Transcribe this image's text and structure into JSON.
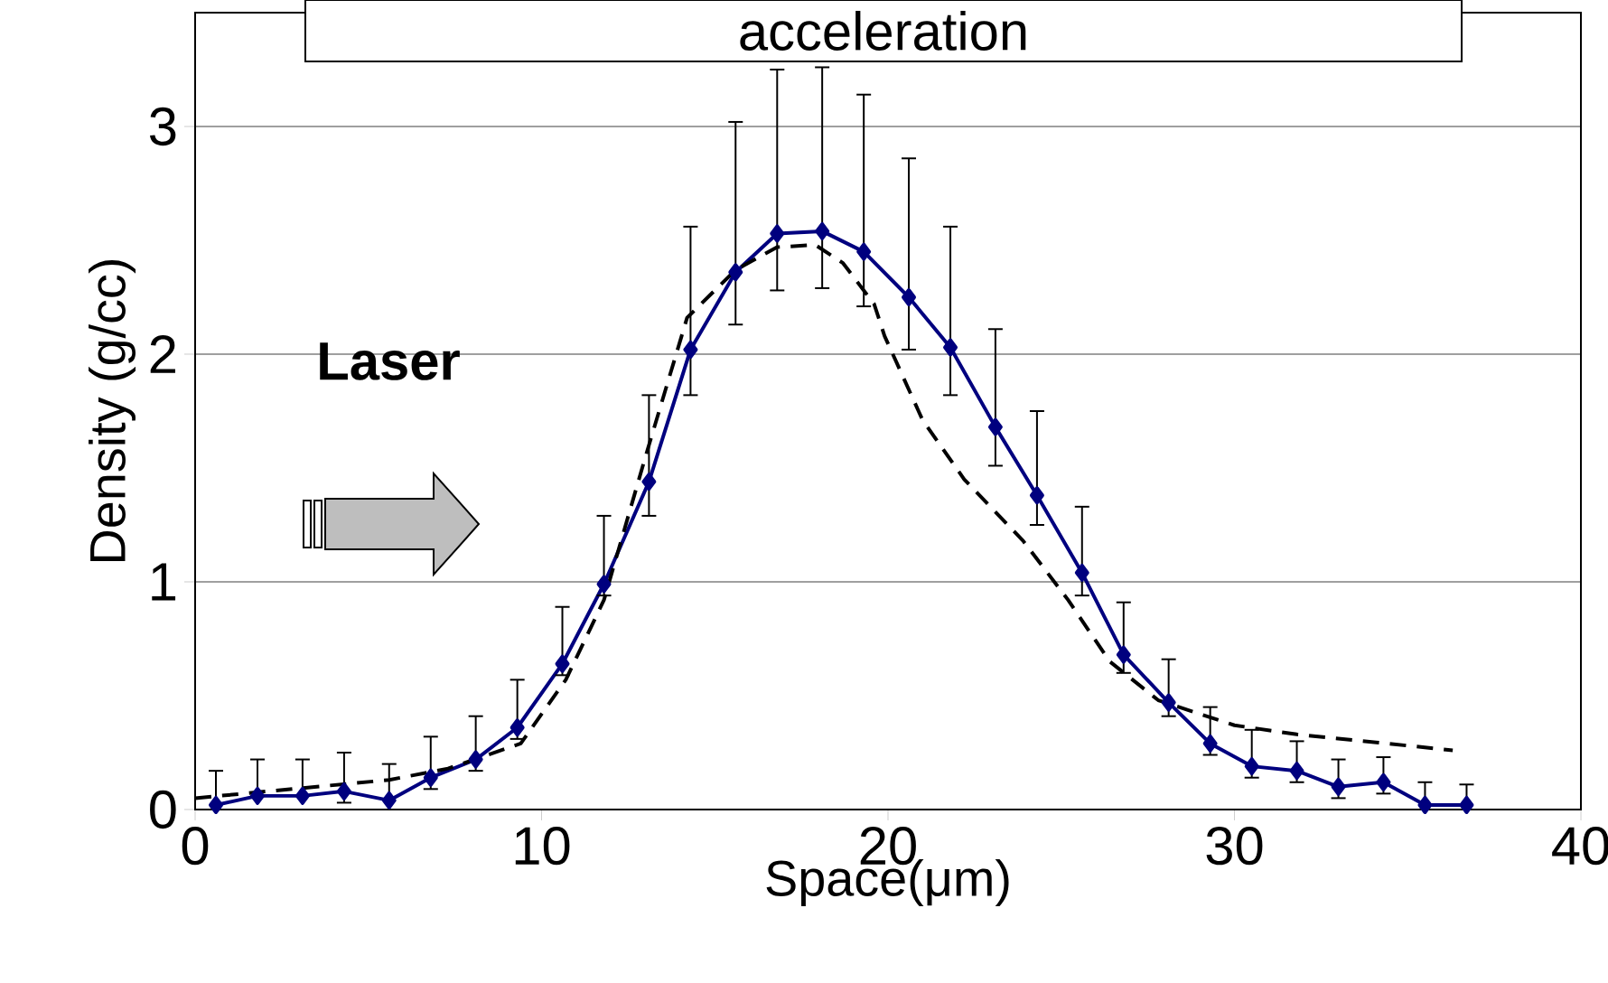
{
  "chart_data": {
    "type": "line",
    "xlabel": "Space(μm)",
    "ylabel": "Density (g/cc)",
    "annotations": [
      "acceleration",
      "Laser"
    ],
    "xlim": [
      0,
      40
    ],
    "ylim": [
      0,
      3.5
    ],
    "xticks": [
      0,
      10,
      20,
      30,
      40
    ],
    "yticks": [
      0,
      1,
      2,
      3
    ],
    "grid": "y",
    "series": [
      {
        "color": "#00007f",
        "marker": "diamond",
        "line_style": "solid",
        "x": [
          0.6,
          1.8,
          3.1,
          4.3,
          5.6,
          6.8,
          8.1,
          9.3,
          10.6,
          11.8,
          13.1,
          14.3,
          15.6,
          16.8,
          18.1,
          19.3,
          20.6,
          21.8,
          23.1,
          24.3,
          25.6,
          26.8,
          28.1,
          29.3,
          30.5,
          31.8,
          33.0,
          34.3,
          35.5,
          36.7
        ],
        "values": [
          0.02,
          0.06,
          0.06,
          0.08,
          0.04,
          0.14,
          0.22,
          0.36,
          0.64,
          0.99,
          1.44,
          2.02,
          2.36,
          2.53,
          2.54,
          2.45,
          2.25,
          2.03,
          1.68,
          1.38,
          1.04,
          0.68,
          0.47,
          0.29,
          0.19,
          0.17,
          0.1,
          0.12,
          0.02,
          0.02
        ],
        "errors": [
          [
            0.0,
            0.17
          ],
          [
            0.06,
            0.22
          ],
          [
            0.06,
            0.22
          ],
          [
            0.03,
            0.25
          ],
          [
            0.0,
            0.2
          ],
          [
            0.09,
            0.32
          ],
          [
            0.17,
            0.41
          ],
          [
            0.31,
            0.57
          ],
          [
            0.59,
            0.89
          ],
          [
            0.94,
            1.29
          ],
          [
            1.29,
            1.82
          ],
          [
            1.82,
            2.56
          ],
          [
            2.13,
            3.02
          ],
          [
            2.28,
            3.25
          ],
          [
            2.29,
            3.26
          ],
          [
            2.21,
            3.14
          ],
          [
            2.02,
            2.86
          ],
          [
            1.82,
            2.56
          ],
          [
            1.51,
            2.11
          ],
          [
            1.25,
            1.75
          ],
          [
            0.94,
            1.33
          ],
          [
            0.6,
            0.91
          ],
          [
            0.41,
            0.66
          ],
          [
            0.24,
            0.45
          ],
          [
            0.14,
            0.35
          ],
          [
            0.12,
            0.3
          ],
          [
            0.05,
            0.22
          ],
          [
            0.07,
            0.23
          ],
          [
            0.0,
            0.12
          ],
          [
            0.0,
            0.11
          ]
        ]
      },
      {
        "color": "#000000",
        "marker": "none",
        "line_style": "dashed",
        "x": [
          0,
          5.6,
          7.3,
          9.4,
          10.7,
          11.8,
          13.0,
          14.2,
          15.6,
          16.8,
          17.9,
          18.7,
          19.6,
          19.9,
          21.0,
          22.2,
          23.9,
          25.2,
          26.4,
          27.8,
          30.0,
          31.8,
          34.4,
          36.3
        ],
        "values": [
          0.05,
          0.13,
          0.18,
          0.29,
          0.57,
          0.92,
          1.55,
          2.16,
          2.37,
          2.47,
          2.48,
          2.4,
          2.22,
          2.08,
          1.71,
          1.45,
          1.18,
          0.92,
          0.65,
          0.48,
          0.37,
          0.33,
          0.29,
          0.26
        ]
      }
    ]
  }
}
